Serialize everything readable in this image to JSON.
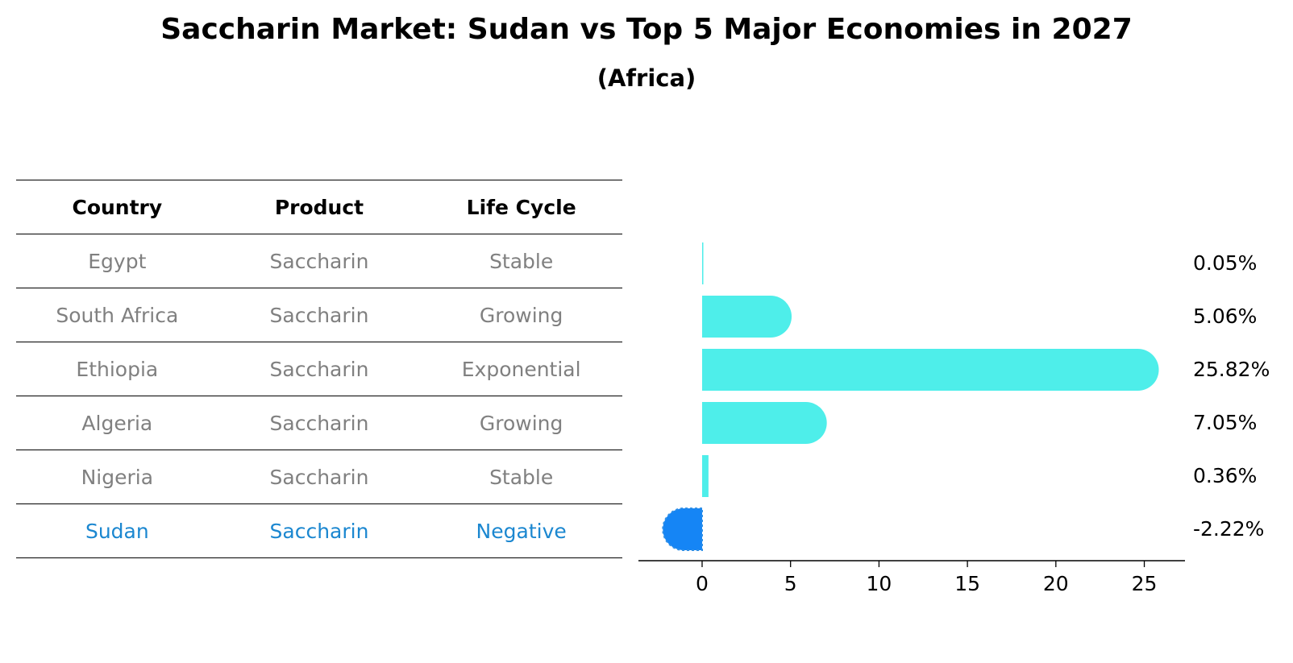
{
  "title": "Saccharin Market: Sudan vs Top 5 Major Economies in 2027",
  "subtitle": "(Africa)",
  "table": {
    "headers": [
      "Country",
      "Product",
      "Life Cycle"
    ],
    "rows": [
      {
        "country": "Egypt",
        "product": "Saccharin",
        "life_cycle": "Stable"
      },
      {
        "country": "South Africa",
        "product": "Saccharin",
        "life_cycle": "Growing"
      },
      {
        "country": "Ethiopia",
        "product": "Saccharin",
        "life_cycle": "Exponential"
      },
      {
        "country": "Algeria",
        "product": "Saccharin",
        "life_cycle": "Growing"
      },
      {
        "country": "Nigeria",
        "product": "Saccharin",
        "life_cycle": "Stable"
      },
      {
        "country": "Sudan",
        "product": "Saccharin",
        "life_cycle": "Negative"
      }
    ],
    "highlight_country": "Sudan"
  },
  "colors": {
    "bar": "#4eeeea",
    "highlight_bar": "#1585f5",
    "highlight_text": "#1b87d0",
    "muted_text": "#808080"
  },
  "chart_data": {
    "type": "bar",
    "orientation": "horizontal",
    "title": "Saccharin Market: Sudan vs Top 5 Major Economies in 2027",
    "subtitle": "(Africa)",
    "categories": [
      "Egypt",
      "South Africa",
      "Ethiopia",
      "Algeria",
      "Nigeria",
      "Sudan"
    ],
    "values": [
      0.05,
      5.06,
      25.82,
      7.05,
      0.36,
      -2.22
    ],
    "data_labels": [
      "0.05%",
      "5.06%",
      "25.82%",
      "7.05%",
      "0.36%",
      "-2.22%"
    ],
    "highlight": "Sudan",
    "xlim": [
      -3.6,
      27.3
    ],
    "xticks": [
      0,
      5,
      10,
      15,
      20,
      25
    ],
    "xlabel": "",
    "ylabel": "",
    "grid": false,
    "legend": "none"
  }
}
